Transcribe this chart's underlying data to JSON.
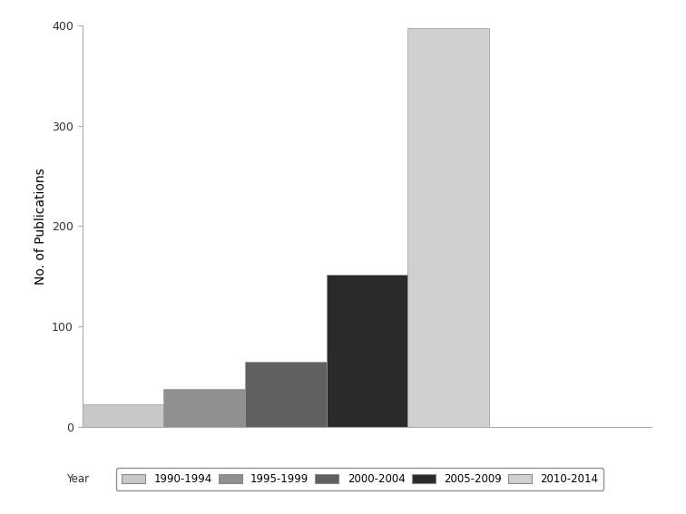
{
  "categories": [
    "1990-1994",
    "1995-1999",
    "2000-2004",
    "2005-2009",
    "2010-2014"
  ],
  "values": [
    22,
    38,
    65,
    152,
    398
  ],
  "bar_colors": [
    "#c8c8c8",
    "#909090",
    "#606060",
    "#2a2a2a",
    "#d0d0d0"
  ],
  "ylabel": "No. of Publications",
  "ylim": [
    0,
    400
  ],
  "yticks": [
    0,
    100,
    200,
    300,
    400
  ],
  "legend_label": "Year",
  "background_color": "#ffffff",
  "bar_edge_color": "#999999",
  "bar_width": 1.0
}
